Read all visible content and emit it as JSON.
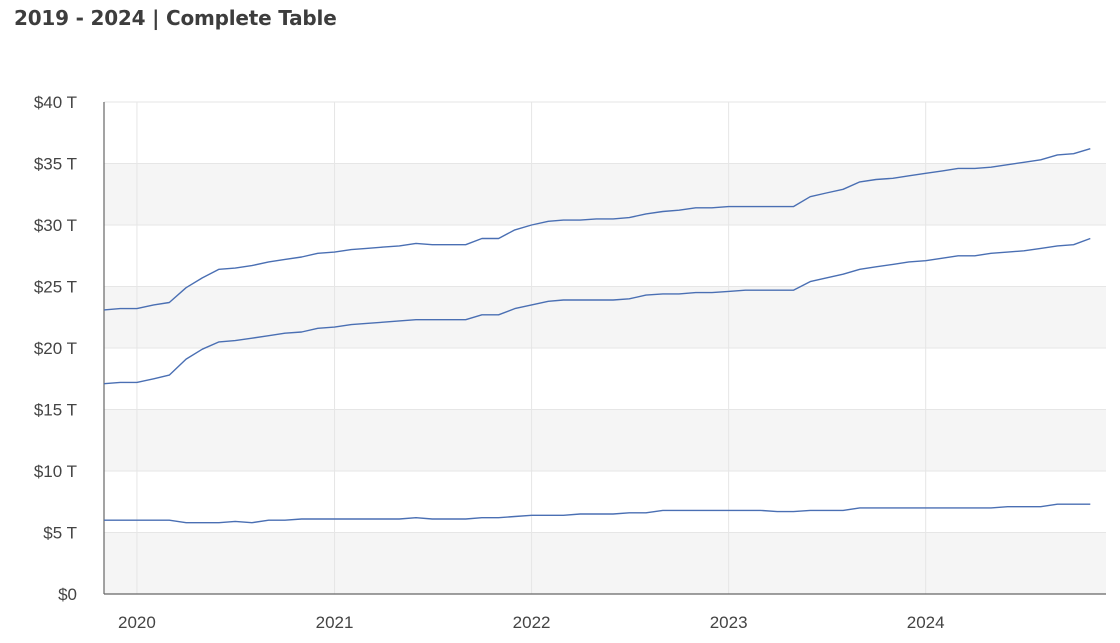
{
  "chart_data": {
    "type": "line",
    "title": "2019 - 2024 | Complete Table",
    "xlabel": "",
    "ylabel": "",
    "x_ticks": [
      "2020",
      "2021",
      "2022",
      "2023",
      "2024"
    ],
    "y_ticks": [
      "$0",
      "$5 T",
      "$10 T",
      "$15 T",
      "$20 T",
      "$25 T",
      "$30 T",
      "$35 T",
      "$40 T"
    ],
    "ylim": [
      0,
      40
    ],
    "xlim": [
      "2019-11-01",
      "2024-11-30"
    ],
    "grid": true,
    "alternating_bands": true,
    "line_color": "#4a6fb3",
    "band_color": "#f5f5f5",
    "grid_color": "#e6e6e6",
    "x": [
      "2019-11",
      "2019-12",
      "2020-01",
      "2020-02",
      "2020-03",
      "2020-04",
      "2020-05",
      "2020-06",
      "2020-07",
      "2020-08",
      "2020-09",
      "2020-10",
      "2020-11",
      "2020-12",
      "2021-01",
      "2021-02",
      "2021-03",
      "2021-04",
      "2021-05",
      "2021-06",
      "2021-07",
      "2021-08",
      "2021-09",
      "2021-10",
      "2021-11",
      "2021-12",
      "2022-01",
      "2022-02",
      "2022-03",
      "2022-04",
      "2022-05",
      "2022-06",
      "2022-07",
      "2022-08",
      "2022-09",
      "2022-10",
      "2022-11",
      "2022-12",
      "2023-01",
      "2023-02",
      "2023-03",
      "2023-04",
      "2023-05",
      "2023-06",
      "2023-07",
      "2023-08",
      "2023-09",
      "2023-10",
      "2023-11",
      "2023-12",
      "2024-01",
      "2024-02",
      "2024-03",
      "2024-04",
      "2024-05",
      "2024-06",
      "2024-07",
      "2024-08",
      "2024-09",
      "2024-10",
      "2024-11"
    ],
    "series": [
      {
        "values": [
          23.1,
          23.2,
          23.2,
          23.5,
          23.7,
          24.9,
          25.7,
          26.4,
          26.5,
          26.7,
          27.0,
          27.2,
          27.4,
          27.7,
          27.8,
          28.0,
          28.1,
          28.2,
          28.3,
          28.5,
          28.4,
          28.4,
          28.4,
          28.9,
          28.9,
          29.6,
          30.0,
          30.3,
          30.4,
          30.4,
          30.5,
          30.5,
          30.6,
          30.9,
          31.1,
          31.2,
          31.4,
          31.4,
          31.5,
          31.5,
          31.5,
          31.5,
          31.5,
          32.3,
          32.6,
          32.9,
          33.5,
          33.7,
          33.8,
          34.0,
          34.2,
          34.4,
          34.6,
          34.6,
          34.7,
          34.9,
          35.1,
          35.3,
          35.7,
          35.8,
          36.2
        ]
      },
      {
        "values": [
          17.1,
          17.2,
          17.2,
          17.5,
          17.8,
          19.1,
          19.9,
          20.5,
          20.6,
          20.8,
          21.0,
          21.2,
          21.3,
          21.6,
          21.7,
          21.9,
          22.0,
          22.1,
          22.2,
          22.3,
          22.3,
          22.3,
          22.3,
          22.7,
          22.7,
          23.2,
          23.5,
          23.8,
          23.9,
          23.9,
          23.9,
          23.9,
          24.0,
          24.3,
          24.4,
          24.4,
          24.5,
          24.5,
          24.6,
          24.7,
          24.7,
          24.7,
          24.7,
          25.4,
          25.7,
          26.0,
          26.4,
          26.6,
          26.8,
          27.0,
          27.1,
          27.3,
          27.5,
          27.5,
          27.7,
          27.8,
          27.9,
          28.1,
          28.3,
          28.4,
          28.9
        ]
      },
      {
        "values": [
          6.0,
          6.0,
          6.0,
          6.0,
          6.0,
          5.8,
          5.8,
          5.8,
          5.9,
          5.8,
          6.0,
          6.0,
          6.1,
          6.1,
          6.1,
          6.1,
          6.1,
          6.1,
          6.1,
          6.2,
          6.1,
          6.1,
          6.1,
          6.2,
          6.2,
          6.3,
          6.4,
          6.4,
          6.4,
          6.5,
          6.5,
          6.5,
          6.6,
          6.6,
          6.8,
          6.8,
          6.8,
          6.8,
          6.8,
          6.8,
          6.8,
          6.7,
          6.7,
          6.8,
          6.8,
          6.8,
          7.0,
          7.0,
          7.0,
          7.0,
          7.0,
          7.0,
          7.0,
          7.0,
          7.0,
          7.1,
          7.1,
          7.1,
          7.3,
          7.3,
          7.3
        ]
      }
    ]
  }
}
